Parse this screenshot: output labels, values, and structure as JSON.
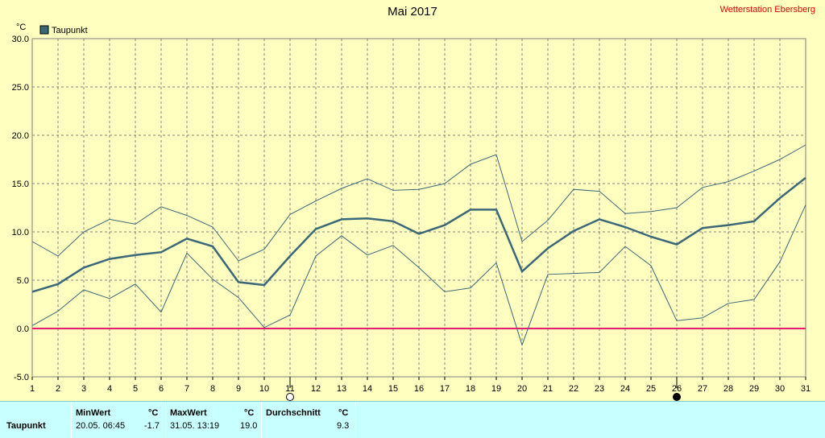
{
  "station": "Wetterstation Ebersberg",
  "chart_data": {
    "type": "line",
    "title": "Mai 2017",
    "ylabel": "°C",
    "ylim": [
      -5,
      30
    ],
    "yticks": [
      -5.0,
      0.0,
      5.0,
      10.0,
      15.0,
      20.0,
      25.0,
      30.0
    ],
    "x": [
      1,
      2,
      3,
      4,
      5,
      6,
      7,
      8,
      9,
      10,
      11,
      12,
      13,
      14,
      15,
      16,
      17,
      18,
      19,
      20,
      21,
      22,
      23,
      24,
      25,
      26,
      27,
      28,
      29,
      30,
      31
    ],
    "legend": "Taupunkt",
    "series": [
      {
        "name": "Taupunkt",
        "values": [
          3.8,
          4.6,
          6.3,
          7.2,
          7.6,
          7.9,
          9.3,
          8.5,
          4.8,
          4.5,
          7.5,
          10.3,
          11.3,
          11.4,
          11.1,
          9.8,
          10.7,
          12.3,
          12.3,
          5.9,
          8.3,
          10.1,
          11.3,
          10.5,
          9.5,
          8.7,
          10.4,
          10.7,
          11.1,
          13.5,
          15.6
        ]
      },
      {
        "values": [
          9.0,
          7.5,
          10.0,
          11.3,
          10.8,
          12.6,
          11.7,
          10.5,
          7.0,
          8.2,
          11.8,
          13.2,
          14.5,
          15.5,
          14.3,
          14.4,
          15.0,
          17.0,
          18.0,
          9.0,
          11.2,
          14.4,
          14.2,
          11.9,
          12.1,
          12.5,
          14.6,
          15.2,
          16.3,
          17.5,
          19.0
        ]
      },
      {
        "values": [
          0.3,
          1.8,
          4.0,
          3.1,
          4.6,
          1.7,
          7.8,
          5.1,
          3.2,
          0.1,
          1.4,
          7.5,
          9.6,
          7.6,
          8.6,
          6.3,
          3.8,
          4.2,
          6.8,
          -1.7,
          5.6,
          5.7,
          5.8,
          8.5,
          6.5,
          0.8,
          1.1,
          2.6,
          3.0,
          6.9,
          12.8
        ]
      }
    ],
    "colors": {
      "main": "#3b6878",
      "minmax": "#3b6878",
      "zero": "#e0206c",
      "grid": "#808080",
      "background": "#ffffc0"
    },
    "markers": [
      {
        "day": 11,
        "symbol": "open-circle"
      },
      {
        "day": 26,
        "symbol": "filled-circle"
      }
    ]
  },
  "stats": {
    "row_label": "Taupunkt",
    "min_header": "MinWert",
    "min_unit": "°C",
    "min_time": "20.05.  06:45",
    "min_value": "-1.7",
    "max_header": "MaxWert",
    "max_unit": "°C",
    "max_time": "31.05.  13:19",
    "max_value": "19.0",
    "avg_header": "Durchschnitt",
    "avg_unit": "°C",
    "avg_value": "9.3"
  }
}
